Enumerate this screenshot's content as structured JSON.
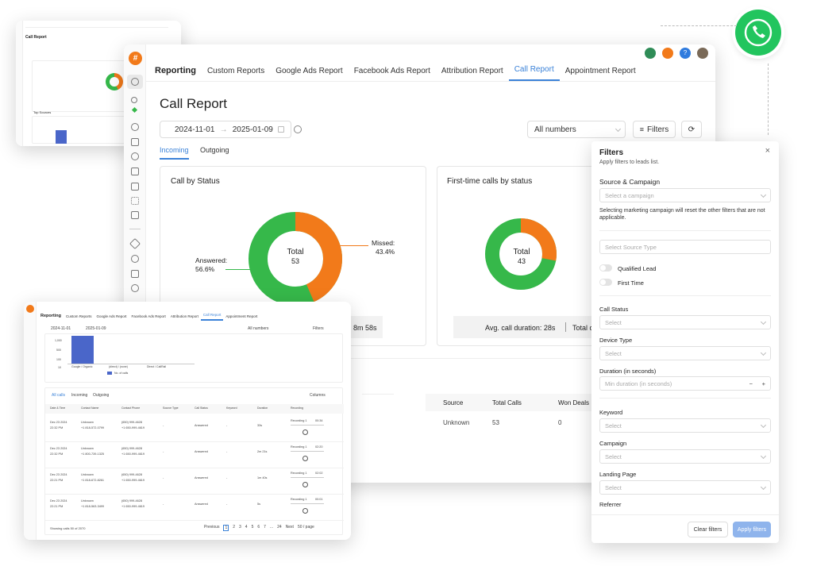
{
  "main": {
    "nav": [
      "Reporting",
      "Custom Reports",
      "Google Ads Report",
      "Facebook Ads Report",
      "Attribution Report",
      "Call Report",
      "Appointment Report"
    ],
    "page_title": "Call Report",
    "date_from": "2024-11-01",
    "date_to": "2025-01-09",
    "numbers_select": "All numbers",
    "filters_btn": "Filters",
    "tabs": [
      "Incoming",
      "Outgoing"
    ],
    "card1_title": "Call by Status",
    "card2_title": "First-time calls by status",
    "donut1": {
      "total_label": "Total",
      "total": "53",
      "answered_label": "Answered:",
      "answered_pct": "56.6%",
      "missed_label": "Missed:",
      "missed_pct": "43.4%",
      "answered": 56.6,
      "missed": 43.4
    },
    "donut2": {
      "total_label": "Total",
      "total": "43",
      "answered": 72,
      "missed": 28
    },
    "avg_duration": "Avg. call duration: 28s",
    "avg_total_partial": "Total c",
    "duration_partial": "8m 58s",
    "table": {
      "headers": [
        "Source",
        "Total Calls",
        "Won Deals"
      ],
      "row": [
        "Unknown",
        "53",
        "0"
      ]
    }
  },
  "filters": {
    "title": "Filters",
    "subtitle": "Apply filters to leads list.",
    "source_campaign": "Source & Campaign",
    "select_campaign": "Select a campaign",
    "campaign_note": "Selecting marketing campaign will reset the other filters that are not applicable.",
    "select_source": "Select Source Type",
    "qualified": "Qualified Lead",
    "first_time": "First Time",
    "call_status": "Call Status",
    "select": "Select",
    "device_type": "Device Type",
    "duration": "Duration (in seconds)",
    "min_duration": "Min duration (in seconds)",
    "keyword": "Keyword",
    "campaign": "Campaign",
    "landing_page": "Landing Page",
    "referrer": "Referrer",
    "clear": "Clear filters",
    "apply": "Apply filters"
  },
  "bottom": {
    "nav": [
      "Reporting",
      "Custom Reports",
      "Google Ads Report",
      "Facebook Ads Report",
      "Attribution Report",
      "Call Report",
      "Appointment Report"
    ],
    "date_from": "2024-11-01",
    "date_to": "2025-01-09",
    "numbers": "All numbers",
    "filters": "Filters",
    "yticks": [
      "1,000",
      "500",
      "100",
      "10"
    ],
    "xcats": [
      "Google / Organic",
      "(direct) / (none)",
      "Direct / CallRail"
    ],
    "legend": "No. of calls",
    "tabs": [
      "All calls",
      "Incoming",
      "Outgoing"
    ],
    "columns_btn": "Columns",
    "headers": [
      "Date & Time",
      "Contact Name",
      "Contact Phone",
      "Source Type",
      "Call Status",
      "Keyword",
      "Duration",
      "Recording"
    ],
    "rows": [
      {
        "date": "Dec 23 2024",
        "time": "22:32 PM",
        "name": "Unknown",
        "phone": "+1 818-572-0799",
        "num": "(650) 999-4628",
        "num2": "+1 650-999-4619",
        "src": "-",
        "status": "Answered",
        "kw": "-",
        "dur": "33s",
        "rec": "Recording 1",
        "rec_t": "00:34"
      },
      {
        "date": "Dec 23 2024",
        "time": "22:32 PM",
        "name": "Unknown",
        "phone": "+1 800-739-1325",
        "num": "(650) 999-4628",
        "num2": "+1 650-999-4619",
        "src": "-",
        "status": "Answered",
        "kw": "-",
        "dur": "2m 21s",
        "rec": "Recording 1",
        "rec_t": "02:20"
      },
      {
        "date": "Dec 23 2024",
        "time": "22:21 PM",
        "name": "Unknown",
        "phone": "+1 818-672-8261",
        "num": "(650) 999-4628",
        "num2": "+1 650-999-4619",
        "src": "-",
        "status": "Answered",
        "kw": "-",
        "dur": "1m 40s",
        "rec": "Recording 1",
        "rec_t": "02:02"
      },
      {
        "date": "Dec 23 2024",
        "time": "22:21 PM",
        "name": "Unknown",
        "phone": "+1 818-563-3499",
        "num": "(650) 999-4628",
        "num2": "+1 650-999-4619",
        "src": "-",
        "status": "Answered",
        "kw": "-",
        "dur": "5s",
        "rec": "Recording 1",
        "rec_t": "00:01"
      }
    ],
    "showing": "Showing calls 50 of 2070",
    "pages": [
      "Previous",
      "1",
      "2",
      "3",
      "4",
      "5",
      "6",
      "7",
      "...",
      "24",
      "Next",
      "50 / page"
    ]
  },
  "thumb": {
    "title": "Call Report",
    "small_label": "Top Sources"
  },
  "colors": {
    "answered": "#36b84a",
    "missed": "#f27a1a",
    "accent": "#3b82d8",
    "whatsapp": "#22c55e",
    "bar": "#4a66c9"
  }
}
